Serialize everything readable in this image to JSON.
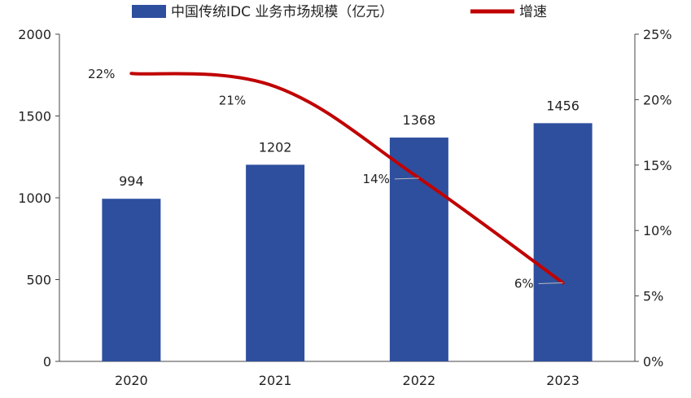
{
  "chart_data": {
    "type": "bar",
    "categories": [
      "2020",
      "2021",
      "2022",
      "2023"
    ],
    "series": [
      {
        "name": "中国传统IDC 业务市场规模（亿元）",
        "type": "bar",
        "axis": "left",
        "color": "#2E4F9E",
        "values": [
          994,
          1202,
          1368,
          1456
        ],
        "labels": [
          "994",
          "1202",
          "1368",
          "1456"
        ]
      },
      {
        "name": "增速",
        "type": "line",
        "axis": "right",
        "color": "#C00000",
        "values": [
          22,
          21,
          14,
          6
        ],
        "labels": [
          "22%",
          "21%",
          "14%",
          "6%"
        ]
      }
    ],
    "y_left": {
      "min": 0,
      "max": 2000,
      "ticks": [
        "0",
        "500",
        "1000",
        "1500",
        "2000"
      ]
    },
    "y_right": {
      "min": 0,
      "max": 25,
      "ticks": [
        "0%",
        "5%",
        "10%",
        "15%",
        "20%",
        "25%"
      ]
    },
    "legend_position": "top",
    "grid": false
  }
}
